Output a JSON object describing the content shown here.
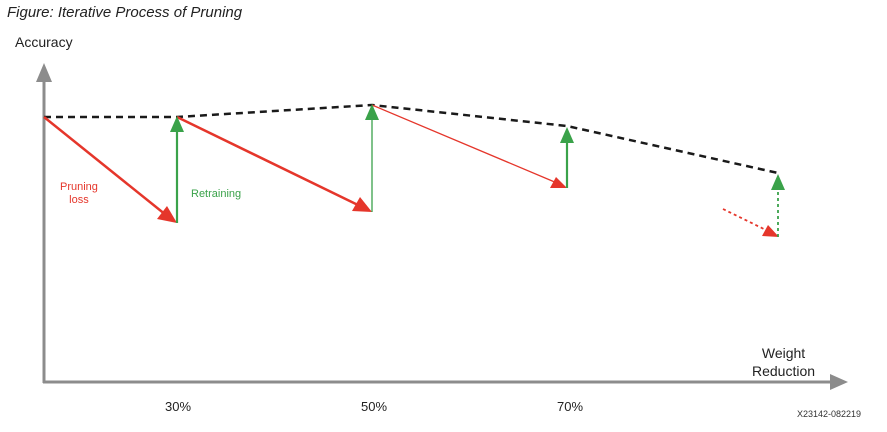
{
  "figure": {
    "title": "Figure: Iterative Process of Pruning",
    "id": "X23142-082219"
  },
  "axes": {
    "y_label": "Accuracy",
    "x_label_line1": "Weight",
    "x_label_line2": "Reduction",
    "x_ticks": [
      "30%",
      "50%",
      "70%"
    ]
  },
  "annotations": {
    "pruning_line1": "Pruning",
    "pruning_line2": "loss",
    "retraining": "Retraining"
  },
  "colors": {
    "axis": "#8c8c8c",
    "accuracy_trend": "#1a1a1a",
    "pruning": "#e5362b",
    "retraining": "#3aa24a"
  }
}
